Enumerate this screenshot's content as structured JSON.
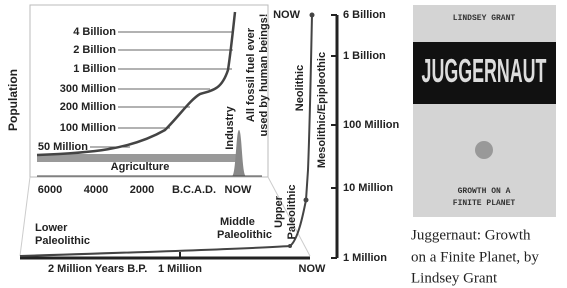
{
  "inset": {
    "y_label": "Population",
    "levels": [
      "4 Billion",
      "2 Billion",
      "1 Billion",
      "300 Million",
      "200 Million",
      "100 Million",
      "50 Million"
    ],
    "x_labels": [
      "6000",
      "4000",
      "2000",
      "B.C.",
      "A.D.",
      "NOW"
    ],
    "band_label": "Agriculture",
    "industry": "Industry",
    "fossil_note": [
      "All fossil fuel ever",
      "used by human beings!"
    ]
  },
  "timeline": {
    "y_labels": [
      "6 Billion",
      "1 Billion",
      "100 Million",
      "10 Million",
      "1 Million"
    ],
    "x_labels": [
      "2 Million Years B.P.",
      "1 Million",
      "NOW"
    ],
    "top_now": "NOW",
    "periods": {
      "lower": [
        "Lower",
        "Paleolithic"
      ],
      "middle": [
        "Middle",
        "Paleolithic"
      ],
      "upper": [
        "Upper",
        "Paleolithic"
      ],
      "neolithic": "Neolithic",
      "mesolithic": "Mesolithic/Epipleothic"
    }
  },
  "book": {
    "author": "LINDSEY GRANT",
    "title": "JUGGERNAUT",
    "subtitle": [
      "GROWTH ON A",
      "FINITE PLANET"
    ],
    "caption": [
      "Juggernaut: Growth",
      "on a Finite Planet, by",
      "Lindsey Grant"
    ]
  }
}
